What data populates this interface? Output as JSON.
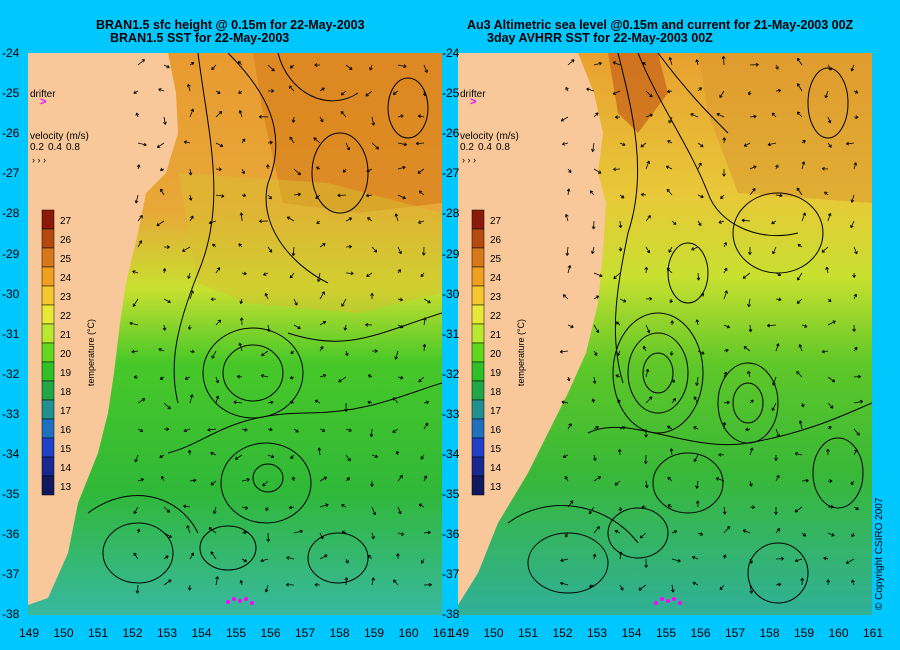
{
  "left_panel": {
    "title_line1": "BRAN1.5 sfc height @ 0.15m for 22-May-2003",
    "title_line2": "BRAN1.5 SST for 22-May-2003"
  },
  "right_panel": {
    "title_line1": "Au3 Altimetric sea level  @0.15m and current for 21-May-2003 00Z",
    "title_line2": "3day AVHRR SST for 22-May-2003 00Z"
  },
  "drifter_label": "drifter",
  "velocity_legend": {
    "label": "velocity (m/s)",
    "values": [
      "0.2",
      "0.4",
      "0.8"
    ]
  },
  "colorbar": {
    "title": "temperature (°C)",
    "ticks": [
      "27",
      "26",
      "25",
      "24",
      "23",
      "22",
      "21",
      "20",
      "19",
      "18",
      "17",
      "16",
      "15",
      "14",
      "13"
    ],
    "colors": [
      "#8b1a0a",
      "#b44a10",
      "#d8781c",
      "#f0a020",
      "#f5c830",
      "#e8e838",
      "#b8e830",
      "#60d820",
      "#30c028",
      "#20a848",
      "#209090",
      "#2070c0",
      "#2040c8",
      "#182890",
      "#101860"
    ]
  },
  "axes": {
    "y_ticks": [
      "-24",
      "-25",
      "-26",
      "-27",
      "-28",
      "-29",
      "-30",
      "-31",
      "-32",
      "-33",
      "-34",
      "-35",
      "-36",
      "-37",
      "-38"
    ],
    "left_x_ticks": [
      "149",
      "150",
      "151",
      "152",
      "153",
      "154",
      "155",
      "156",
      "157",
      "158",
      "159",
      "160",
      "161"
    ],
    "right_x_ticks": [
      "149",
      "150",
      "151",
      "152",
      "153",
      "154",
      "155",
      "156",
      "157",
      "158",
      "159",
      "160",
      "161"
    ]
  },
  "colors": {
    "background": "#00c8ff",
    "land": "#f8c89a",
    "drifter_marker": "#ff00ff"
  },
  "copyright": "© Copyright CSIRO 2007"
}
